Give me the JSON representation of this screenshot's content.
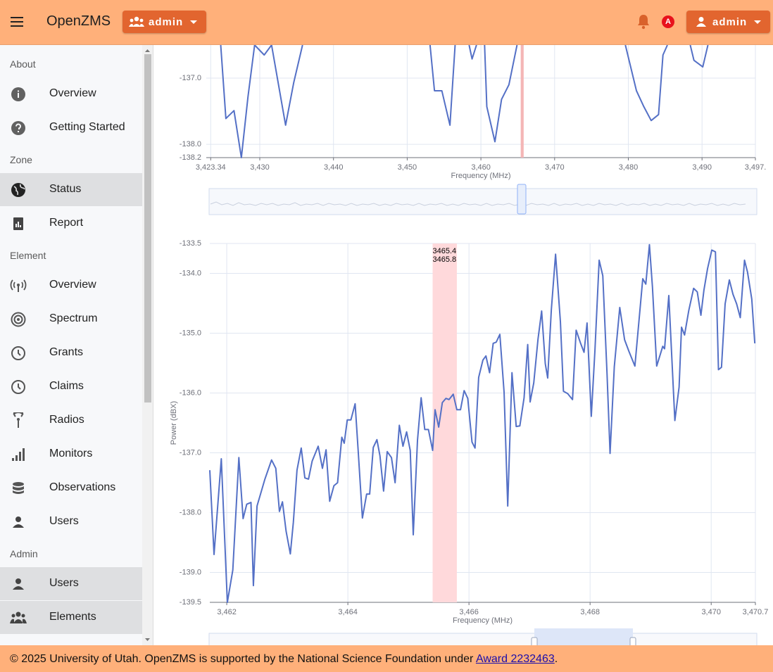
{
  "header": {
    "app_name": "OpenZMS",
    "group_menu": "admin",
    "alert_badge": "A",
    "user_menu": "admin"
  },
  "sidebar": {
    "sections": [
      {
        "title": "About",
        "items": [
          "Overview",
          "Getting Started"
        ]
      },
      {
        "title": "Zone",
        "items": [
          "Status",
          "Report"
        ]
      },
      {
        "title": "Element",
        "items": [
          "Overview",
          "Spectrum",
          "Grants",
          "Claims",
          "Radios",
          "Monitors",
          "Observations",
          "Users"
        ]
      },
      {
        "title": "Admin",
        "items": [
          "Users",
          "Elements"
        ]
      }
    ]
  },
  "chart_data": [
    {
      "type": "line",
      "x_label": "Frequency (MHz)",
      "xlim": [
        3422.74,
        3497.24
      ],
      "xticks": [
        {
          "value": 3423.34,
          "label": "3,423.34"
        },
        {
          "value": 3430,
          "label": "3,430"
        },
        {
          "value": 3440,
          "label": "3,440"
        },
        {
          "value": 3450,
          "label": "3,450"
        },
        {
          "value": 3460,
          "label": "3,460"
        },
        {
          "value": 3470,
          "label": "3,470"
        },
        {
          "value": 3480,
          "label": "3,480"
        },
        {
          "value": 3490,
          "label": "3,490"
        },
        {
          "value": 3497.24,
          "label": "3,497."
        }
      ],
      "ylim": [
        -138.2,
        -136.5
      ],
      "yticks": [
        {
          "value": -137,
          "label": "-137.0"
        },
        {
          "value": -138,
          "label": "-138.0"
        },
        {
          "value": -138.2,
          "label": "-138.2"
        }
      ],
      "grid": true,
      "highlight": {
        "start": 3465.4,
        "end": 3465.8,
        "color": "#f4b6b6"
      },
      "x": [
        3424.7,
        3425.4,
        3426.5,
        3427.5,
        3428.4,
        3429.3,
        3430.6,
        3431.6,
        3433.5,
        3434.6,
        3435.8,
        null,
        3453.1,
        3453.7,
        3454.7,
        3455.8,
        3456.5,
        null,
        3458.4,
        3458.8,
        3459.4,
        null,
        3460.5,
        3460.8,
        3461.9,
        3462.8,
        3463.8,
        3464.9,
        null,
        3479.6,
        3481.1,
        3482.1,
        3483.1,
        3484.1,
        3484.7,
        3485.3,
        null,
        3488.4,
        3488.9,
        3490.1,
        3490.8
      ],
      "series": [
        {
          "color": "#5470c6",
          "values": [
            -136.5,
            -137.61,
            -137.49,
            -138.2,
            -137.28,
            -136.5,
            -136.65,
            -136.5,
            -137.71,
            -137.07,
            -136.5,
            null,
            -136.5,
            -137.19,
            -137.19,
            -137.71,
            -136.5,
            null,
            -136.5,
            -136.71,
            -136.5,
            null,
            -136.5,
            -137.43,
            -137.96,
            -137.32,
            -137.1,
            -136.5,
            null,
            -136.5,
            -137.19,
            -137.43,
            -137.64,
            -137.55,
            -136.65,
            -136.5,
            null,
            -136.5,
            -136.73,
            -136.83,
            -136.5
          ]
        }
      ]
    },
    {
      "type": "line",
      "x_label": "Frequency (MHz)",
      "y_label": "Power (dBX)",
      "xlim": [
        3461.72,
        3470.73
      ],
      "xticks": [
        {
          "value": 3462,
          "label": "3,462"
        },
        {
          "value": 3464,
          "label": "3,464"
        },
        {
          "value": 3466,
          "label": "3,466"
        },
        {
          "value": 3468,
          "label": "3,468"
        },
        {
          "value": 3470,
          "label": "3,470"
        },
        {
          "value": 3470.73,
          "label": "3,470.7"
        }
      ],
      "ylim": [
        -139.5,
        -133.5
      ],
      "yticks": [
        {
          "value": -133.5,
          "label": "-133.5"
        },
        {
          "value": -134,
          "label": "-134.0"
        },
        {
          "value": -135,
          "label": "-135.0"
        },
        {
          "value": -136,
          "label": "-136.0"
        },
        {
          "value": -137,
          "label": "-137.0"
        },
        {
          "value": -138,
          "label": "-138.0"
        },
        {
          "value": -139,
          "label": "-139.0"
        },
        {
          "value": -139.5,
          "label": "-139.5"
        }
      ],
      "grid": true,
      "highlight": {
        "start": 3465.4,
        "end": 3465.8,
        "color": "#ffd9db"
      },
      "x": [
        3461.72,
        3461.79,
        3461.91,
        3462.01,
        3462.1,
        3462.2,
        3462.27,
        3462.33,
        3462.4,
        3462.44,
        3462.5,
        3462.63,
        3462.74,
        3462.81,
        3462.87,
        3462.92,
        3462.98,
        3463.05,
        3463.1,
        3463.16,
        3463.23,
        3463.29,
        3463.35,
        3463.41,
        3463.51,
        3463.58,
        3463.64,
        3463.7,
        3463.77,
        3463.83,
        3463.9,
        3463.94,
        3463.99,
        3464.05,
        3464.12,
        3464.17,
        3464.24,
        3464.31,
        3464.36,
        3464.42,
        3464.48,
        3464.53,
        3464.59,
        3464.65,
        3464.72,
        3464.78,
        3464.85,
        3464.91,
        3464.97,
        3465.03,
        3465.08,
        3465.15,
        3465.21,
        3465.27,
        3465.33,
        3465.4,
        3465.44,
        3465.5,
        3465.56,
        3465.62,
        3465.67,
        3465.74,
        3465.8,
        3465.86,
        3465.92,
        3465.98,
        3466.05,
        3466.1,
        3466.16,
        3466.23,
        3466.28,
        3466.34,
        3466.4,
        3466.45,
        3466.51,
        3466.58,
        3466.64,
        3466.71,
        3466.78,
        3466.84,
        3466.91,
        3466.97,
        3467.01,
        3467.07,
        3467.14,
        3467.2,
        3467.26,
        3467.3,
        3467.36,
        3467.43,
        3467.51,
        3467.56,
        3467.63,
        3467.71,
        3467.77,
        3467.84,
        3467.9,
        3467.95,
        3468.02,
        3468.08,
        3468.15,
        3468.21,
        3468.28,
        3468.33,
        3468.4,
        3468.49,
        3468.57,
        3468.64,
        3468.74,
        3468.87,
        3468.92,
        3468.98,
        3469.03,
        3469.1,
        3469.2,
        3469.23,
        3469.3,
        3469.4,
        3469.47,
        3469.51,
        3469.56,
        3469.63,
        3469.71,
        3469.77,
        3469.83,
        3469.88,
        3469.94,
        3470.01,
        3470.07,
        3470.12,
        3470.17,
        3470.23,
        3470.3,
        3470.36,
        3470.42,
        3470.48,
        3470.55,
        3470.6,
        3470.67,
        3470.72
      ],
      "series": [
        {
          "color": "#5470c6",
          "values": [
            -137.29,
            -138.7,
            -137.1,
            -139.5,
            -138.96,
            -137.08,
            -138.1,
            -137.86,
            -137.83,
            -139.22,
            -137.89,
            -137.44,
            -137.12,
            -137.26,
            -137.98,
            -137.82,
            -138.31,
            -138.69,
            -138.16,
            -137.29,
            -136.92,
            -137.42,
            -137.44,
            -137.14,
            -136.89,
            -137.26,
            -136.95,
            -137.81,
            -137.55,
            -137.5,
            -136.74,
            -136.84,
            -136.45,
            -136.45,
            -136.18,
            -136.96,
            -138.09,
            -137.69,
            -137.69,
            -136.91,
            -136.78,
            -137.05,
            -137.64,
            -136.98,
            -137.08,
            -137.5,
            -136.54,
            -136.89,
            -136.65,
            -136.96,
            -138.37,
            -136.79,
            -136.08,
            -136.61,
            -136.61,
            -136.96,
            -136.28,
            -136.57,
            -136.16,
            -136.09,
            -136.11,
            -136.02,
            -136.28,
            -136.28,
            -135.96,
            -136.09,
            -136.82,
            -136.92,
            -135.74,
            -135.45,
            -135.38,
            -135.66,
            -135.17,
            -135.15,
            -135.02,
            -135.99,
            -137.89,
            -135.66,
            -136.56,
            -136.55,
            -136.08,
            -135.19,
            -136.15,
            -135.83,
            -135.1,
            -134.63,
            -135.51,
            -135.75,
            -134.61,
            -133.68,
            -134.81,
            -135.97,
            -136.01,
            -136.11,
            -134.95,
            -135.16,
            -135.32,
            -134.83,
            -136.39,
            -135.29,
            -133.78,
            -134.04,
            -135.68,
            -137.01,
            -135.56,
            -134.57,
            -135.11,
            -135.3,
            -135.55,
            -134.09,
            -134.18,
            -133.52,
            -134.23,
            -135.55,
            -135.22,
            -135.26,
            -134.37,
            -136.46,
            -135.9,
            -134.9,
            -135.03,
            -134.62,
            -134.25,
            -134.31,
            -134.7,
            -134.28,
            -133.92,
            -133.61,
            -133.64,
            -135.61,
            -135.57,
            -134.51,
            -134.11,
            -134.35,
            -134.51,
            -134.74,
            -133.78,
            -133.98,
            -134.43,
            -135.17
          ]
        }
      ]
    }
  ],
  "footer": {
    "text": "© 2025 University of Utah. OpenZMS is supported by the National Science Foundation under",
    "link": "Award 2232463",
    "suffix": "."
  }
}
